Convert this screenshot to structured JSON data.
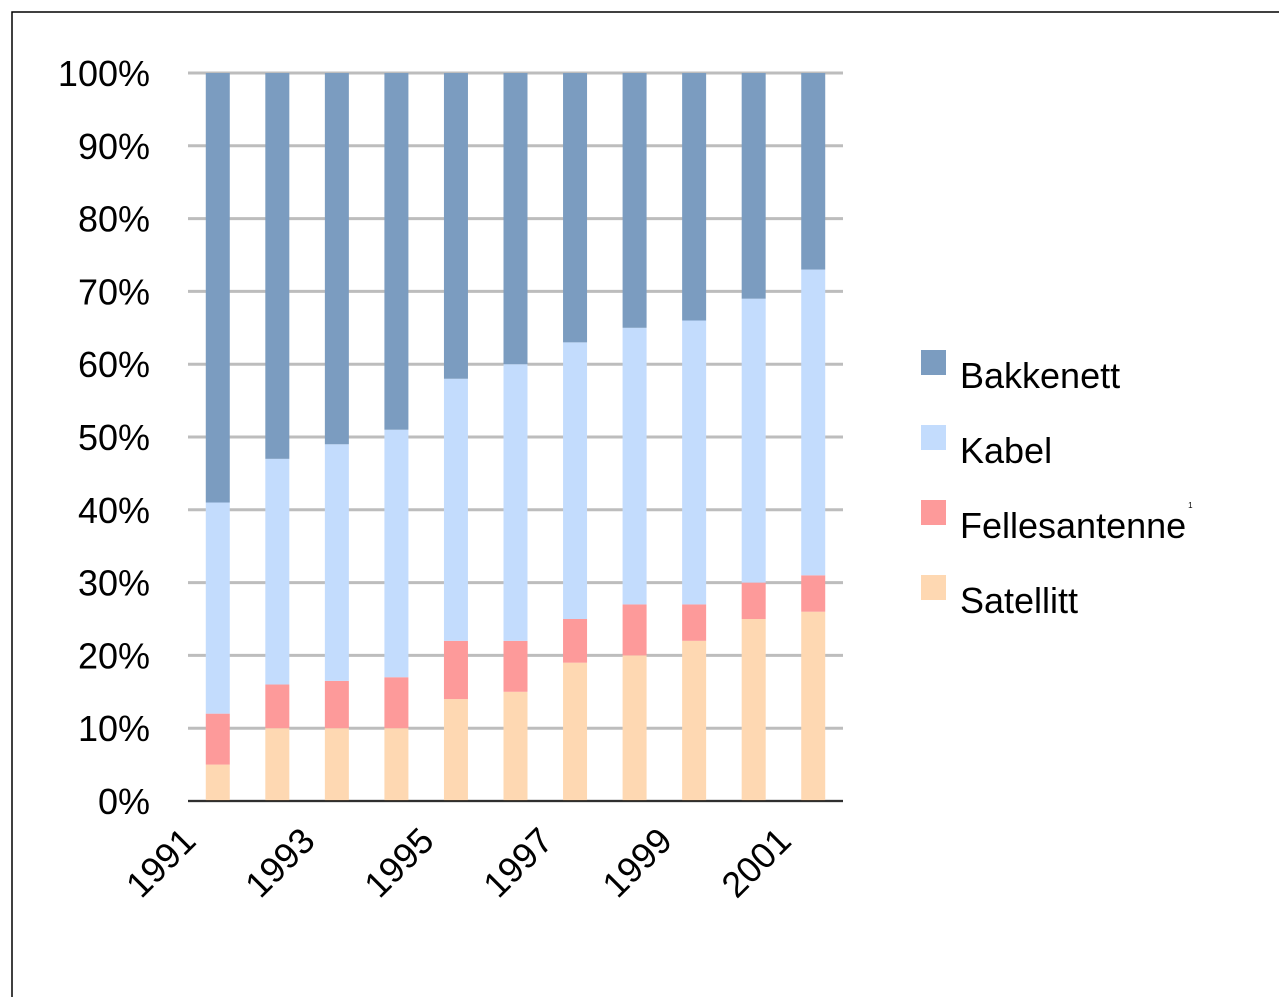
{
  "chart_data": {
    "type": "stacked_bar",
    "categories": [
      "1991",
      null,
      "1993",
      null,
      "1995",
      null,
      "1997",
      null,
      "1999",
      null,
      "2001"
    ],
    "series": [
      {
        "name": "Satellitt",
        "color": "#fed8b2",
        "values": [
          5,
          10,
          10,
          10,
          14,
          15,
          19,
          20,
          22,
          25,
          26
        ]
      },
      {
        "name": "Fellesantenne",
        "color": "#fd9a9a",
        "values": [
          7,
          6,
          6.5,
          7,
          8,
          7,
          6,
          7,
          5,
          5,
          5
        ]
      },
      {
        "name": "Kabel",
        "color": "#c3dcfd",
        "values": [
          29,
          31,
          32.5,
          34,
          36,
          38,
          38,
          38,
          39,
          39,
          42
        ]
      },
      {
        "name": "Bakkenett",
        "color": "#7b9cc0",
        "values": [
          59,
          53,
          51,
          49,
          42,
          40,
          37,
          35,
          34,
          31,
          27
        ]
      }
    ],
    "footnote_marker": "1",
    "ylim": [
      0,
      100
    ],
    "yticks": [
      {
        "value": 0,
        "label": "0%"
      },
      {
        "value": 10,
        "label": "10%"
      },
      {
        "value": 20,
        "label": "20%"
      },
      {
        "value": 30,
        "label": "30%"
      },
      {
        "value": 40,
        "label": "40%"
      },
      {
        "value": 50,
        "label": "50%"
      },
      {
        "value": 60,
        "label": "60%"
      },
      {
        "value": 70,
        "label": "70%"
      },
      {
        "value": 80,
        "label": "80%"
      },
      {
        "value": 90,
        "label": "90%"
      },
      {
        "value": 100,
        "label": "100%"
      }
    ],
    "grid": true,
    "legend": "right"
  }
}
